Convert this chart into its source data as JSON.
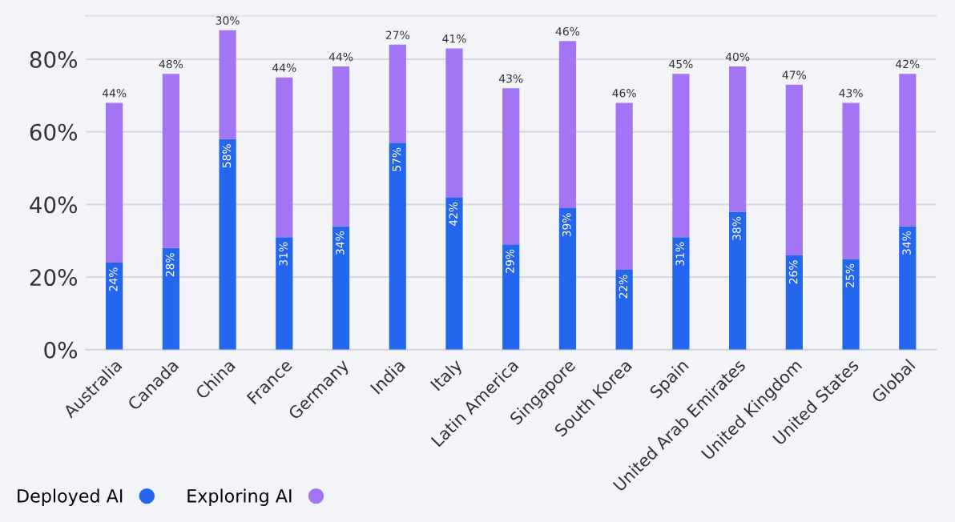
{
  "chart_data": {
    "type": "bar",
    "stacked": true,
    "categories": [
      "Australia",
      "Canada",
      "China",
      "France",
      "Germany",
      "India",
      "Italy",
      "Latin America",
      "Singapore",
      "South Korea",
      "Spain",
      "United Arab Emirates",
      "United Kingdom",
      "United States",
      "Global"
    ],
    "series": [
      {
        "name": "Deployed AI",
        "color": "#2566ee",
        "values": [
          24,
          28,
          58,
          31,
          34,
          57,
          42,
          29,
          39,
          22,
          31,
          38,
          26,
          25,
          34
        ],
        "value_labels": [
          "24%",
          "28%",
          "58%",
          "31%",
          "34%",
          "57%",
          "42%",
          "29%",
          "39%",
          "22%",
          "31%",
          "38%",
          "26%",
          "25%",
          "34%"
        ]
      },
      {
        "name": "Exploring AI",
        "color": "#a375f4",
        "values": [
          44,
          48,
          30,
          44,
          44,
          27,
          41,
          43,
          46,
          46,
          45,
          40,
          47,
          43,
          42
        ],
        "value_labels": [
          "44%",
          "48%",
          "30%",
          "44%",
          "44%",
          "27%",
          "41%",
          "43%",
          "46%",
          "46%",
          "45%",
          "40%",
          "47%",
          "43%",
          "42%"
        ]
      }
    ],
    "ylim": [
      0,
      92
    ],
    "yticks": [
      {
        "value": 0,
        "label": "0%"
      },
      {
        "value": 20,
        "label": "20%"
      },
      {
        "value": 40,
        "label": "40%"
      },
      {
        "value": 60,
        "label": "60%"
      },
      {
        "value": 80,
        "label": "80%"
      }
    ],
    "grid": "y",
    "legend": "bottom left"
  }
}
